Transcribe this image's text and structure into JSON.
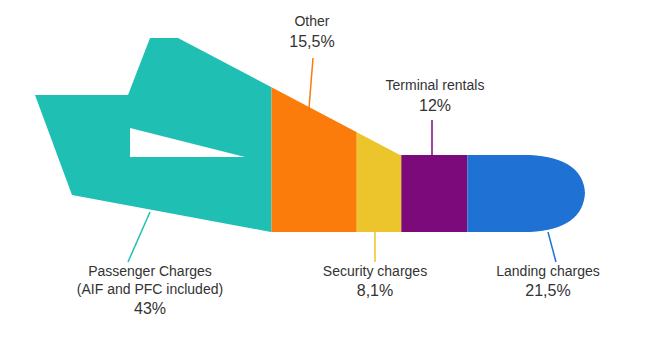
{
  "chart_data": {
    "type": "bar",
    "orientation": "horizontal",
    "stacked": true,
    "data_labels": true,
    "categories": [
      "Passenger Charges (AIF and PFC included)",
      "Other",
      "Security charges",
      "Terminal rentals",
      "Landing charges"
    ],
    "values": [
      43,
      15.5,
      8.1,
      12,
      21.5
    ],
    "value_labels": [
      "43%",
      "15,5%",
      "8,1%",
      "12%",
      "21,5%"
    ],
    "colors": [
      "#1fc0b3",
      "#fb7c0a",
      "#ecc52c",
      "#7c0a7b",
      "#1f72d4"
    ],
    "xlim": [
      0,
      100
    ]
  }
}
